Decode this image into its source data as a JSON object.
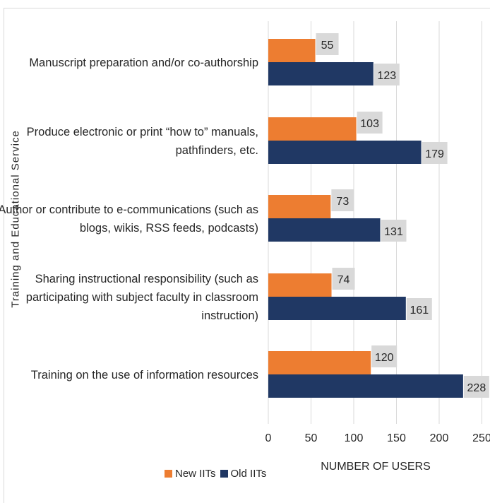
{
  "chart_data": {
    "type": "bar",
    "orientation": "horizontal",
    "categories": [
      [
        "Manuscript preparation and/or co-authorship"
      ],
      [
        "Produce electronic or print “how to” manuals,",
        "pathfinders, etc."
      ],
      [
        "Author or contribute to e-communications (such as",
        "blogs, wikis, RSS feeds, podcasts)"
      ],
      [
        "Sharing instructional responsibility (such as",
        "participating with subject faculty in classroom",
        "instruction)"
      ],
      [
        "Training on the use of information resources"
      ]
    ],
    "series": [
      {
        "name": "New IITs",
        "color": "#ed7d31",
        "values": [
          55,
          103,
          73,
          74,
          120
        ]
      },
      {
        "name": "Old IITs",
        "color": "#203864",
        "values": [
          123,
          179,
          131,
          161,
          228
        ]
      }
    ],
    "xlabel": "NUMBER OF USERS",
    "ylabel": "Training and  Educational Service",
    "xlim": [
      0,
      250
    ],
    "xticks": [
      "0",
      "50",
      "100",
      "150",
      "200",
      "250"
    ],
    "grid": true,
    "data_labels": true,
    "legend": "bottom-left"
  }
}
